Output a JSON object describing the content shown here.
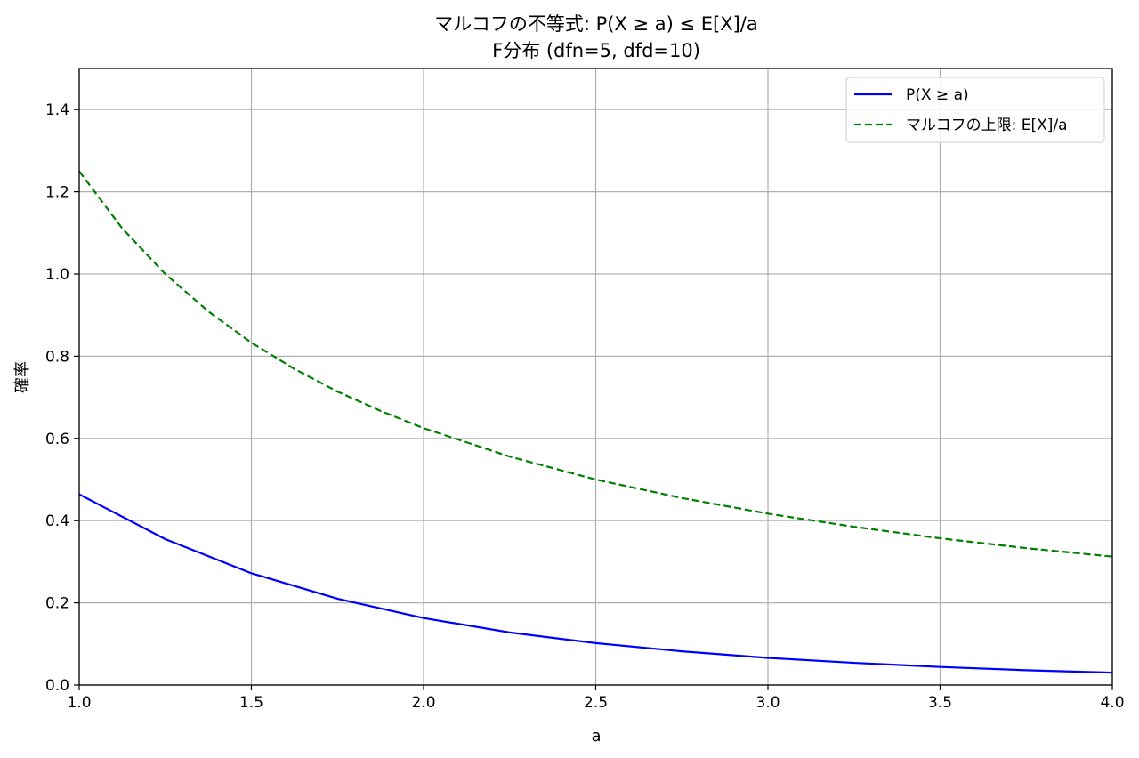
{
  "chart_data": {
    "type": "line",
    "title": "マルコフの不等式: P(X ≥ a) ≤ E[X]/a",
    "subtitle": "F分布 (dfn=5, dfd=10)",
    "xlabel": "a",
    "ylabel": "確率",
    "xlim": [
      1.0,
      4.0
    ],
    "ylim": [
      0.0,
      1.5
    ],
    "xticks": [
      1.0,
      1.5,
      2.0,
      2.5,
      3.0,
      3.5,
      4.0
    ],
    "xtick_labels": [
      "1.0",
      "1.5",
      "2.0",
      "2.5",
      "3.0",
      "3.5",
      "4.0"
    ],
    "yticks": [
      0.0,
      0.2,
      0.4,
      0.6,
      0.8,
      1.0,
      1.2,
      1.4
    ],
    "ytick_labels": [
      "0.0",
      "0.2",
      "0.4",
      "0.6",
      "0.8",
      "1.0",
      "1.2",
      "1.4"
    ],
    "grid": true,
    "legend_position": "top-right",
    "series": [
      {
        "name": "P(X ≥ a)",
        "color": "#0000ff",
        "style": "solid",
        "x": [
          1.0,
          1.25,
          1.5,
          1.75,
          2.0,
          2.25,
          2.5,
          2.75,
          3.0,
          3.25,
          3.5,
          3.75,
          4.0
        ],
        "y": [
          0.464,
          0.355,
          0.272,
          0.21,
          0.163,
          0.128,
          0.102,
          0.082,
          0.066,
          0.054,
          0.044,
          0.036,
          0.03
        ]
      },
      {
        "name": "マルコフの上限: E[X]/a",
        "color": "#008000",
        "style": "dashed",
        "x": [
          1.0,
          1.125,
          1.25,
          1.375,
          1.5,
          1.625,
          1.75,
          1.875,
          2.0,
          2.25,
          2.5,
          2.75,
          3.0,
          3.25,
          3.5,
          3.75,
          4.0
        ],
        "y": [
          1.25,
          1.111,
          1.0,
          0.909,
          0.833,
          0.769,
          0.714,
          0.667,
          0.625,
          0.556,
          0.5,
          0.455,
          0.417,
          0.385,
          0.357,
          0.333,
          0.3125
        ]
      }
    ]
  }
}
